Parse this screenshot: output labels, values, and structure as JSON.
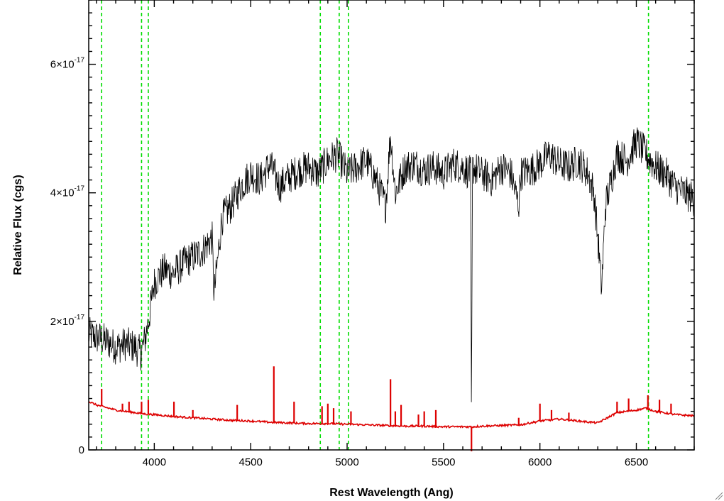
{
  "chart_data": {
    "type": "line",
    "xlabel": "Rest Wavelength (Ang)",
    "ylabel": "Relative Flux (cgs)",
    "xlim": [
      3660,
      6800
    ],
    "ylim": [
      0,
      7e-17
    ],
    "x_ticks": [
      4000,
      4500,
      5000,
      5500,
      6000,
      6500
    ],
    "x_tick_labels": [
      "4000",
      "4500",
      "5000",
      "5500",
      "6000",
      "6500"
    ],
    "y_ticks": [
      {
        "value": 0,
        "mantissa": "0",
        "exponent": ""
      },
      {
        "value": 2e-17,
        "mantissa": "2×10",
        "exponent": "-17"
      },
      {
        "value": 4e-17,
        "mantissa": "4×10",
        "exponent": "-17"
      },
      {
        "value": 6e-17,
        "mantissa": "6×10",
        "exponent": "-17"
      }
    ],
    "reference_lines": [
      3727,
      3934,
      3969,
      4861,
      4959,
      5007,
      6563
    ],
    "reference_line_color": "#00dd00",
    "series": [
      {
        "color": "#000000",
        "x": [
          3660,
          3700,
          3750,
          3800,
          3850,
          3900,
          3930,
          3950,
          3970,
          4000,
          4050,
          4100,
          4150,
          4200,
          4250,
          4300,
          4310,
          4350,
          4400,
          4450,
          4500,
          4550,
          4600,
          4650,
          4700,
          4750,
          4800,
          4850,
          4900,
          4950,
          5000,
          5050,
          5100,
          5150,
          5200,
          5225,
          5250,
          5300,
          5350,
          5400,
          5450,
          5500,
          5550,
          5600,
          5640,
          5645,
          5650,
          5700,
          5750,
          5800,
          5850,
          5890,
          5900,
          5950,
          6000,
          6050,
          6100,
          6150,
          6200,
          6250,
          6280,
          6300,
          6320,
          6340,
          6400,
          6450,
          6500,
          6550,
          6600,
          6650,
          6700,
          6750,
          6800
        ],
        "y": [
          1.8e-17,
          1.75e-17,
          1.7e-17,
          1.6e-17,
          1.65e-17,
          1.6e-17,
          1.5e-17,
          1.7e-17,
          2e-17,
          2.6e-17,
          2.8e-17,
          2.75e-17,
          2.9e-17,
          3e-17,
          3.1e-17,
          3.3e-17,
          2.4e-17,
          3.6e-17,
          3.8e-17,
          4.1e-17,
          4.3e-17,
          4.2e-17,
          4.45e-17,
          4.1e-17,
          4.25e-17,
          4.35e-17,
          4.4e-17,
          4.3e-17,
          4.5e-17,
          4.6e-17,
          4.3e-17,
          4.4e-17,
          4.5e-17,
          4.2e-17,
          3.8e-17,
          4.9e-17,
          4e-17,
          4.4e-17,
          4.45e-17,
          4.35e-17,
          4.4e-17,
          4.3e-17,
          4.45e-17,
          4.4e-17,
          4.3e-17,
          2e-18,
          4.4e-17,
          4.3e-17,
          4.2e-17,
          4.4e-17,
          4.3e-17,
          3.8e-17,
          4.3e-17,
          4.35e-17,
          4.45e-17,
          4.6e-17,
          4.45e-17,
          4.4e-17,
          4.5e-17,
          4.3e-17,
          4e-17,
          3.3e-17,
          2.5e-17,
          3.8e-17,
          4.6e-17,
          4.5e-17,
          4.8e-17,
          4.6e-17,
          4.4e-17,
          4.3e-17,
          4.1e-17,
          4e-17,
          3.9e-17
        ]
      },
      {
        "color": "#dd0000",
        "x": [
          3660,
          3700,
          3750,
          3800,
          3850,
          3900,
          3950,
          4000,
          4100,
          4200,
          4300,
          4400,
          4500,
          4600,
          4700,
          4800,
          4900,
          5000,
          5100,
          5200,
          5300,
          5400,
          5500,
          5600,
          5650,
          5700,
          5800,
          5900,
          6000,
          6100,
          6200,
          6300,
          6400,
          6500,
          6550,
          6600,
          6700,
          6800
        ],
        "y": [
          7.5e-18,
          7e-18,
          6.6e-18,
          6.2e-18,
          6e-18,
          5.8e-18,
          5.6e-18,
          5.5e-18,
          5.2e-18,
          5e-18,
          4.8e-18,
          4.6e-18,
          4.5e-18,
          4.3e-18,
          4.2e-18,
          4.1e-18,
          4.1e-18,
          4e-18,
          3.9e-18,
          3.8e-18,
          3.7e-18,
          3.7e-18,
          3.6e-18,
          3.6e-18,
          3.6e-18,
          3.7e-18,
          3.8e-18,
          3.9e-18,
          4.5e-18,
          4.8e-18,
          4.5e-18,
          4.2e-18,
          5.8e-18,
          6.2e-18,
          6.5e-18,
          6e-18,
          5.5e-18,
          5.3e-18
        ]
      }
    ],
    "red_spikes": [
      {
        "x": 3727,
        "y": 9.5e-18
      },
      {
        "x": 3835,
        "y": 7.2e-18
      },
      {
        "x": 3869,
        "y": 7.5e-18
      },
      {
        "x": 3934,
        "y": 7.5e-18
      },
      {
        "x": 3969,
        "y": 7.8e-18
      },
      {
        "x": 4102,
        "y": 7.5e-18
      },
      {
        "x": 4200,
        "y": 6.2e-18
      },
      {
        "x": 4430,
        "y": 7e-18
      },
      {
        "x": 4620,
        "y": 1.3e-17
      },
      {
        "x": 4725,
        "y": 7.5e-18
      },
      {
        "x": 4870,
        "y": 6.8e-18
      },
      {
        "x": 4900,
        "y": 7.2e-18
      },
      {
        "x": 4930,
        "y": 6.5e-18
      },
      {
        "x": 5020,
        "y": 6e-18
      },
      {
        "x": 5225,
        "y": 1.1e-17
      },
      {
        "x": 5250,
        "y": 6e-18
      },
      {
        "x": 5280,
        "y": 7e-18
      },
      {
        "x": 5370,
        "y": 5.5e-18
      },
      {
        "x": 5400,
        "y": 6e-18
      },
      {
        "x": 5460,
        "y": 6.2e-18
      },
      {
        "x": 5645,
        "y": -2e-18
      },
      {
        "x": 5890,
        "y": 5e-18
      },
      {
        "x": 6000,
        "y": 7.2e-18
      },
      {
        "x": 6060,
        "y": 6.2e-18
      },
      {
        "x": 6150,
        "y": 5.8e-18
      },
      {
        "x": 6400,
        "y": 7.5e-18
      },
      {
        "x": 6460,
        "y": 8e-18
      },
      {
        "x": 6560,
        "y": 8.5e-18
      },
      {
        "x": 6620,
        "y": 7.8e-18
      },
      {
        "x": 6680,
        "y": 7.2e-18
      }
    ]
  }
}
